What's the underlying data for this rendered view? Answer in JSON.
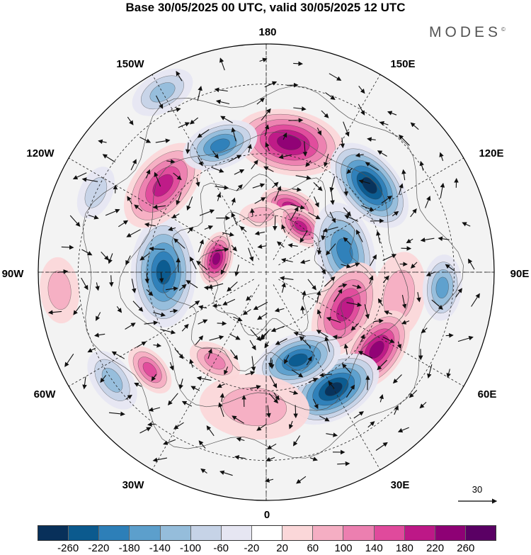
{
  "title": "Base 30/05/2025 00 UTC, valid 30/05/2025 12 UTC",
  "logo": {
    "text": "MODES",
    "mark": "©"
  },
  "map": {
    "projection": "polar-stereographic-north",
    "longitude_labels": {
      "top": "180",
      "top_left": "150W",
      "top_right": "150E",
      "upper_left": "120W",
      "upper_right": "120E",
      "left": "90W",
      "right": "90E",
      "lower_left": "60W",
      "lower_right": "60E",
      "bottom_left": "30W",
      "bottom_right": "30E",
      "bottom": "0"
    },
    "reference_vector": {
      "label": "30"
    }
  },
  "colorbar": {
    "colors": [
      "#08305a",
      "#0b5a8e",
      "#2d7fb8",
      "#5c9fcc",
      "#95bddb",
      "#c6d3e7",
      "#e6e6f2",
      "#ffffff",
      "#fbd7d9",
      "#f5aec3",
      "#ec7fb0",
      "#e04a9c",
      "#bd1887",
      "#8e0175",
      "#5a0064"
    ],
    "tick_labels": [
      "-260",
      "-220",
      "-180",
      "-140",
      "-100",
      "-60",
      "-20",
      "20",
      "60",
      "100",
      "140",
      "180",
      "220",
      "260"
    ]
  },
  "anomalies": [
    {
      "type": "positive",
      "level": 5,
      "lon": 170,
      "lat": 46,
      "size": 1.0
    },
    {
      "type": "negative",
      "level": 6,
      "lon": 130,
      "lat": 45,
      "size": 0.9
    },
    {
      "type": "positive",
      "level": 4,
      "lon": 160,
      "lat": 66,
      "size": 0.55
    },
    {
      "type": "positive",
      "level": 4,
      "lon": 143,
      "lat": 70,
      "size": 0.5
    },
    {
      "type": "negative",
      "level": 4,
      "lon": 105,
      "lat": 62,
      "size": 0.9
    },
    {
      "type": "positive",
      "level": 1,
      "lon": 80,
      "lat": 45,
      "size": 0.8
    },
    {
      "type": "negative",
      "level": 3,
      "lon": 85,
      "lat": 33,
      "size": 0.6
    },
    {
      "type": "positive",
      "level": 4,
      "lon": 65,
      "lat": 60,
      "size": 0.9
    },
    {
      "type": "positive",
      "level": 5,
      "lon": 55,
      "lat": 45,
      "size": 0.8
    },
    {
      "type": "negative",
      "level": 6,
      "lon": 30,
      "lat": 45,
      "size": 0.9
    },
    {
      "type": "negative",
      "level": 5,
      "lon": 20,
      "lat": 58,
      "size": 0.8
    },
    {
      "type": "positive",
      "level": 1,
      "lon": 355,
      "lat": 45,
      "size": 1.0
    },
    {
      "type": "positive",
      "level": 3,
      "lon": 310,
      "lat": 40,
      "size": 0.5
    },
    {
      "type": "positive",
      "level": 2,
      "lon": 330,
      "lat": 55,
      "size": 0.5
    },
    {
      "type": "negative",
      "level": 2,
      "lon": 305,
      "lat": 30,
      "size": 0.6
    },
    {
      "type": "negative",
      "level": 5,
      "lon": 270,
      "lat": 55,
      "size": 1.0
    },
    {
      "type": "positive",
      "level": 5,
      "lon": 255,
      "lat": 72,
      "size": 0.5
    },
    {
      "type": "positive",
      "level": 4,
      "lon": 230,
      "lat": 45,
      "size": 0.9
    },
    {
      "type": "negative",
      "level": 4,
      "lon": 200,
      "lat": 45,
      "size": 0.7
    },
    {
      "type": "negative",
      "level": 2,
      "lon": 210,
      "lat": 25,
      "size": 0.6
    },
    {
      "type": "positive",
      "level": 1,
      "lon": 185,
      "lat": 70,
      "size": 0.4
    },
    {
      "type": "negative",
      "level": 1,
      "lon": 245,
      "lat": 30,
      "size": 0.5
    },
    {
      "type": "positive",
      "level": 1,
      "lon": 275,
      "lat": 25,
      "size": 0.6
    }
  ]
}
